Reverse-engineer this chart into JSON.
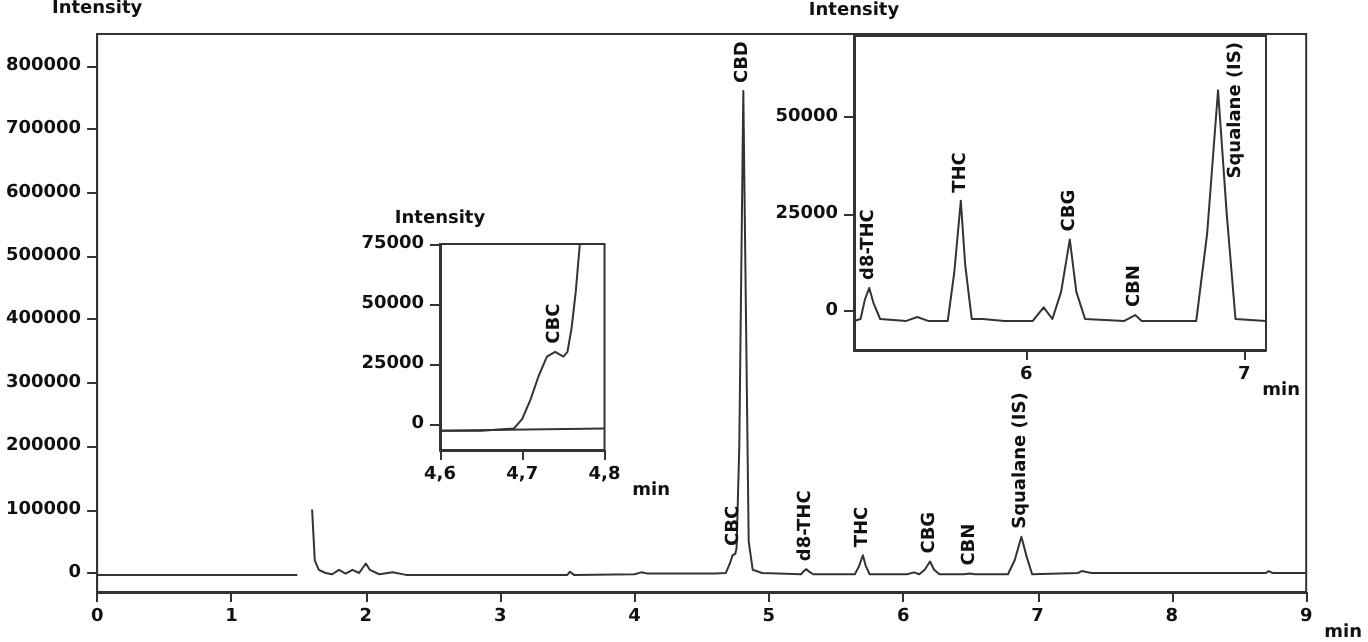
{
  "chart_data": [
    {
      "type": "line",
      "xlabel": "min",
      "ylabel": "Intensity",
      "xlim": [
        0,
        9
      ],
      "xticks": [
        0,
        1,
        2,
        3,
        4,
        5,
        6,
        7,
        8,
        9
      ],
      "ylim": [
        -30000,
        850000
      ],
      "yticks": [
        0,
        100000,
        200000,
        300000,
        400000,
        500000,
        600000,
        700000,
        800000
      ],
      "marker": "none",
      "line_style": "solid",
      "series": [
        {
          "color": "#333333",
          "x": [
            0,
            1.49,
            1.5,
            1.58,
            1.6,
            1.62,
            1.65,
            1.7,
            1.75,
            1.8,
            1.85,
            1.9,
            1.95,
            2.0,
            2.03,
            2.1,
            2.2,
            2.3,
            3.5,
            3.52,
            3.55,
            4.0,
            4.05,
            4.1,
            4.6,
            4.68,
            4.71,
            4.73,
            4.75,
            4.76,
            4.78,
            4.81,
            4.83,
            4.85,
            4.88,
            4.95,
            5.24,
            5.26,
            5.28,
            5.3,
            5.33,
            5.64,
            5.67,
            5.7,
            5.72,
            5.75,
            6.03,
            6.08,
            6.12,
            6.16,
            6.2,
            6.23,
            6.27,
            6.45,
            6.5,
            6.53,
            6.78,
            6.83,
            6.88,
            6.92,
            6.96,
            7.3,
            7.33,
            7.4,
            8.7,
            8.72,
            8.75,
            9
          ],
          "values": [
            -3000,
            -3000,
            null,
            null,
            100000,
            20000,
            5000,
            0,
            -2000,
            5000,
            -1000,
            5000,
            0,
            15000,
            5000,
            -2000,
            1000,
            -3000,
            -3000,
            2000,
            -3000,
            -2000,
            1000,
            -1000,
            -1000,
            0,
            15000,
            28000,
            30000,
            40000,
            200000,
            760000,
            400000,
            50000,
            5000,
            0,
            -2000,
            3000,
            6000,
            2000,
            -2000,
            -2000,
            10000,
            28000,
            12000,
            -2000,
            -2000,
            1000,
            -2000,
            5000,
            18000,
            5000,
            -2000,
            -2000,
            -1000,
            -2000,
            -2000,
            20000,
            57000,
            25000,
            -2000,
            0,
            3000,
            0,
            0,
            3000,
            0,
            0
          ]
        }
      ],
      "annotations": [
        {
          "text": "CBC",
          "x": 4.74,
          "y": 30000
        },
        {
          "text": "CBD",
          "x": 4.81,
          "y": 760000
        },
        {
          "text": "d8-THC",
          "x": 5.28,
          "y": 6000
        },
        {
          "text": "THC",
          "x": 5.7,
          "y": 28000
        },
        {
          "text": "CBG",
          "x": 6.2,
          "y": 18000
        },
        {
          "text": "CBN",
          "x": 6.5,
          "y": -1000
        },
        {
          "text": "Squalane (IS)",
          "x": 6.88,
          "y": 57000
        }
      ]
    },
    {
      "type": "line",
      "xlabel": "min",
      "ylabel": "Intensity",
      "xlim": [
        4.6,
        4.8
      ],
      "xticks": [
        {
          "value": 4.6,
          "label": "4,6"
        },
        {
          "value": 4.7,
          "label": "4,7"
        },
        {
          "value": 4.8,
          "label": "4,8"
        }
      ],
      "ylim": [
        -11000,
        75000
      ],
      "yticks": [
        0,
        25000,
        50000,
        75000
      ],
      "marker": "none",
      "line_style": "solid",
      "series": [
        {
          "color": "#333333",
          "x": [
            4.6,
            4.65,
            4.69,
            4.7,
            4.71,
            4.72,
            4.73,
            4.74,
            4.75,
            4.755,
            4.76,
            4.765,
            4.77
          ],
          "values": [
            -3000,
            -3000,
            -2000,
            2000,
            10000,
            20000,
            28000,
            30000,
            28000,
            30000,
            40000,
            55000,
            75000
          ]
        },
        {
          "color": "#333333",
          "x": [
            4.6,
            4.8
          ],
          "values": [
            -3000,
            -2000
          ]
        }
      ],
      "annotations": [
        {
          "text": "CBC",
          "x": 4.74,
          "y": 30000
        }
      ]
    },
    {
      "type": "line",
      "xlabel": "min",
      "ylabel": "Intensity",
      "xlim": [
        5.21,
        7.1
      ],
      "xticks": [
        6,
        7
      ],
      "ylim": [
        -10000,
        71000
      ],
      "yticks": [
        0,
        25000,
        50000
      ],
      "marker": "none",
      "line_style": "solid",
      "series": [
        {
          "color": "#333333",
          "x": [
            5.21,
            5.24,
            5.26,
            5.28,
            5.3,
            5.33,
            5.45,
            5.5,
            5.55,
            5.64,
            5.67,
            5.7,
            5.72,
            5.75,
            5.8,
            5.9,
            6.03,
            6.08,
            6.12,
            6.16,
            6.2,
            6.23,
            6.27,
            6.45,
            6.5,
            6.53,
            6.78,
            6.83,
            6.88,
            6.92,
            6.96,
            7.1
          ],
          "values": [
            -2500,
            -2000,
            3000,
            6000,
            2000,
            -2000,
            -2500,
            -1500,
            -2500,
            -2500,
            10000,
            28500,
            12000,
            -2000,
            -2000,
            -2500,
            -2500,
            1000,
            -2000,
            5000,
            18500,
            5000,
            -2000,
            -2500,
            -1000,
            -2500,
            -2500,
            20000,
            57000,
            25000,
            -2000,
            -2500
          ]
        }
      ],
      "annotations": [
        {
          "text": "d8-THC",
          "x": 5.28,
          "y": 6000
        },
        {
          "text": "THC",
          "x": 5.7,
          "y": 28500
        },
        {
          "text": "CBG",
          "x": 6.2,
          "y": 18500
        },
        {
          "text": "CBN",
          "x": 6.5,
          "y": -1000
        },
        {
          "text": "Squalane (IS)",
          "x": 6.88,
          "y": 57000
        }
      ]
    }
  ]
}
